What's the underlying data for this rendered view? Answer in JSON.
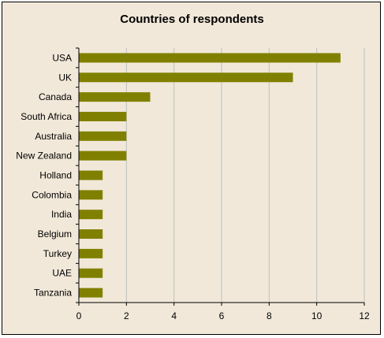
{
  "chart_data": {
    "type": "bar",
    "orientation": "horizontal",
    "title": "Countries of respondents",
    "categories": [
      "USA",
      "UK",
      "Canada",
      "South Africa",
      "Australia",
      "New Zealand",
      "Holland",
      "Colombia",
      "India",
      "Belgium",
      "Turkey",
      "UAE",
      "Tanzania"
    ],
    "values": [
      11,
      9,
      3,
      2,
      2,
      2,
      1,
      1,
      1,
      1,
      1,
      1,
      1
    ],
    "xlabel": "",
    "ylabel": "",
    "xlim": [
      0,
      12
    ],
    "x_ticks": [
      "0",
      "2",
      "4",
      "6",
      "8",
      "10",
      "12"
    ],
    "grid": "vertical",
    "legend": "none",
    "colors": {
      "bar": "#808000",
      "background": "#f1e8d9",
      "grid": "#c0c0c0"
    }
  }
}
